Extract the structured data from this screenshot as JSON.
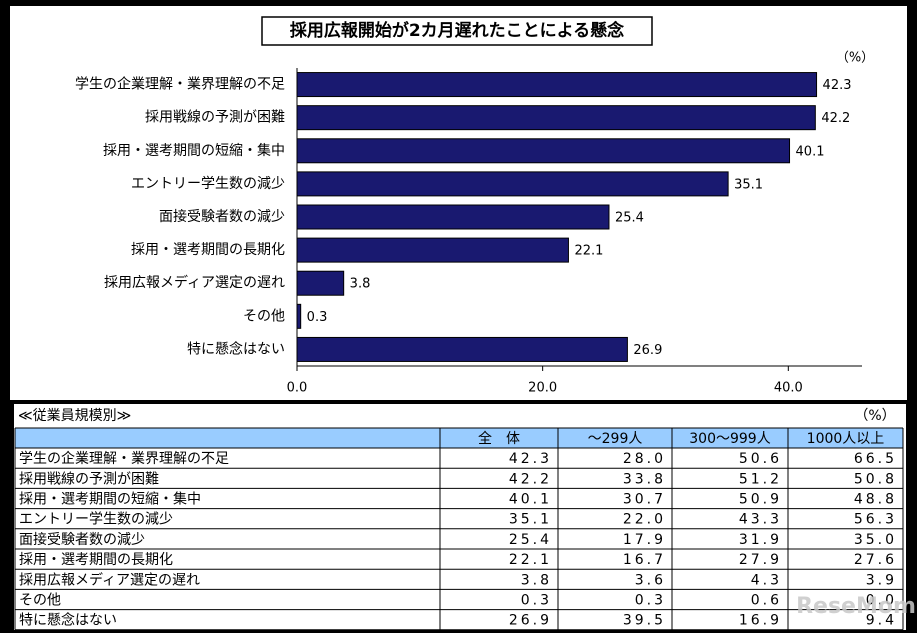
{
  "chart_data": {
    "type": "barh",
    "title": "採用広報開始が2カ月遅れたことによる懸念",
    "unit_label": "（%）",
    "categories": [
      "学生の企業理解・業界理解の不足",
      "採用戦線の予測が困難",
      "採用・選考期間の短縮・集中",
      "エントリー学生数の減少",
      "面接受験者数の減少",
      "採用・選考期間の長期化",
      "採用広報メディア選定の遅れ",
      "その他",
      "特に懸念はない"
    ],
    "values": [
      42.3,
      42.2,
      40.1,
      35.1,
      25.4,
      22.1,
      3.8,
      0.3,
      26.9
    ],
    "color": "#191970",
    "xlim": [
      0,
      46
    ],
    "xticks": [
      {
        "value": 0,
        "label": "0.0"
      },
      {
        "value": 20,
        "label": "20.0"
      },
      {
        "value": 40,
        "label": "40.0"
      }
    ],
    "grid": false
  },
  "table": {
    "caption": "≪従業員規模別≫",
    "unit": "（%）",
    "header": [
      "全　体",
      "～299人",
      "300～999人",
      "1000人以上"
    ],
    "rows": [
      [
        "学生の企業理解・業界理解の不足",
        "42.3",
        "28.0",
        "50.6",
        "66.5"
      ],
      [
        "採用戦線の予測が困難",
        "42.2",
        "33.8",
        "51.2",
        "50.8"
      ],
      [
        "採用・選考期間の短縮・集中",
        "40.1",
        "30.7",
        "50.9",
        "48.8"
      ],
      [
        "エントリー学生数の減少",
        "35.1",
        "22.0",
        "43.3",
        "56.3"
      ],
      [
        "面接受験者数の減少",
        "25.4",
        "17.9",
        "31.9",
        "35.0"
      ],
      [
        "採用・選考期間の長期化",
        "22.1",
        "16.7",
        "27.9",
        "27.6"
      ],
      [
        "採用広報メディア選定の遅れ",
        "3.8",
        "3.6",
        "4.3",
        "3.9"
      ],
      [
        "その他",
        "0.3",
        "0.3",
        "0.6",
        "0.0"
      ],
      [
        "特に懸念はない",
        "26.9",
        "39.5",
        "16.9",
        "9.4"
      ]
    ]
  },
  "watermark": "ReseMom"
}
